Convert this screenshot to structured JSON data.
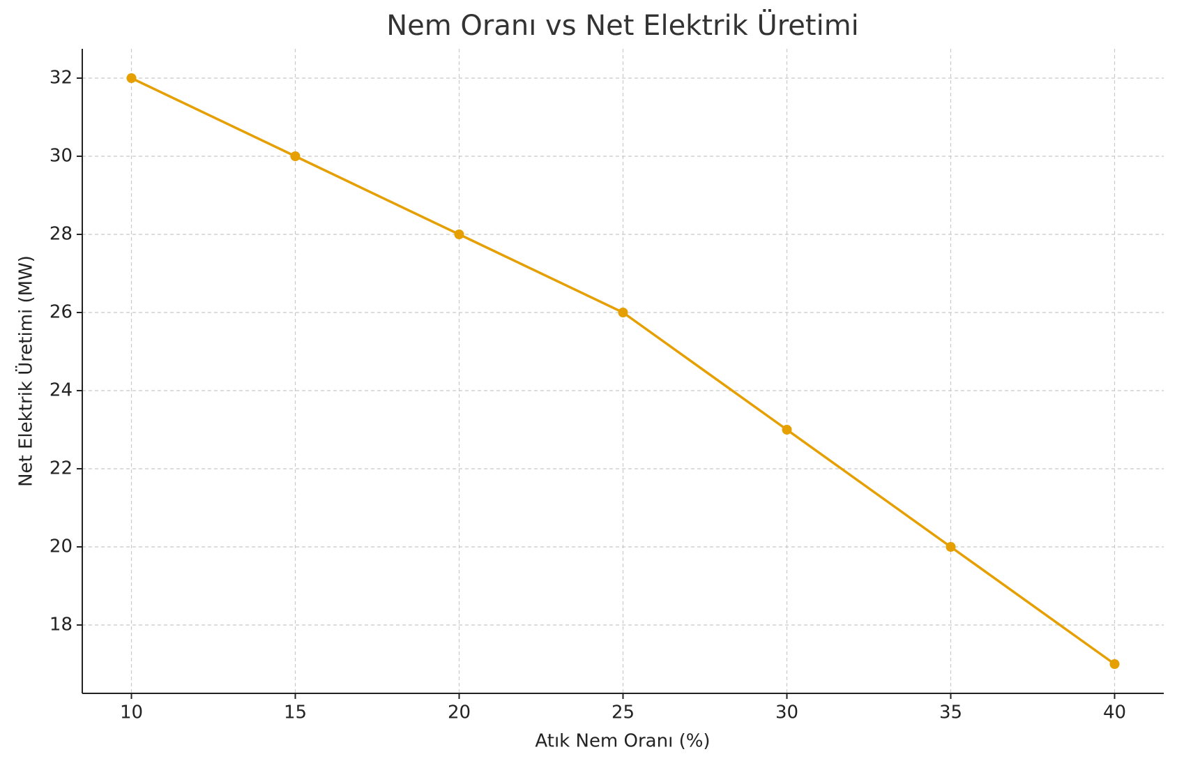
{
  "chart_data": {
    "type": "line",
    "title": "Nem Oranı vs Net Elektrik Üretimi",
    "x_label": "Atık Nem Oranı (%)",
    "y_label": "Net Elektrik Üretimi (MW)",
    "x": [
      10,
      15,
      20,
      25,
      30,
      35,
      40
    ],
    "series": [
      {
        "color": "#e69f00",
        "values": [
          32,
          30,
          28,
          26,
          23,
          20,
          17
        ]
      }
    ],
    "xlim": [
      8.5,
      41.5
    ],
    "xticks": [
      10,
      15,
      20,
      25,
      30,
      35,
      40
    ],
    "ylim": [
      16.25,
      32.75
    ],
    "yticks": [
      18,
      20,
      22,
      24,
      26,
      28,
      30,
      32
    ],
    "grid": true
  }
}
